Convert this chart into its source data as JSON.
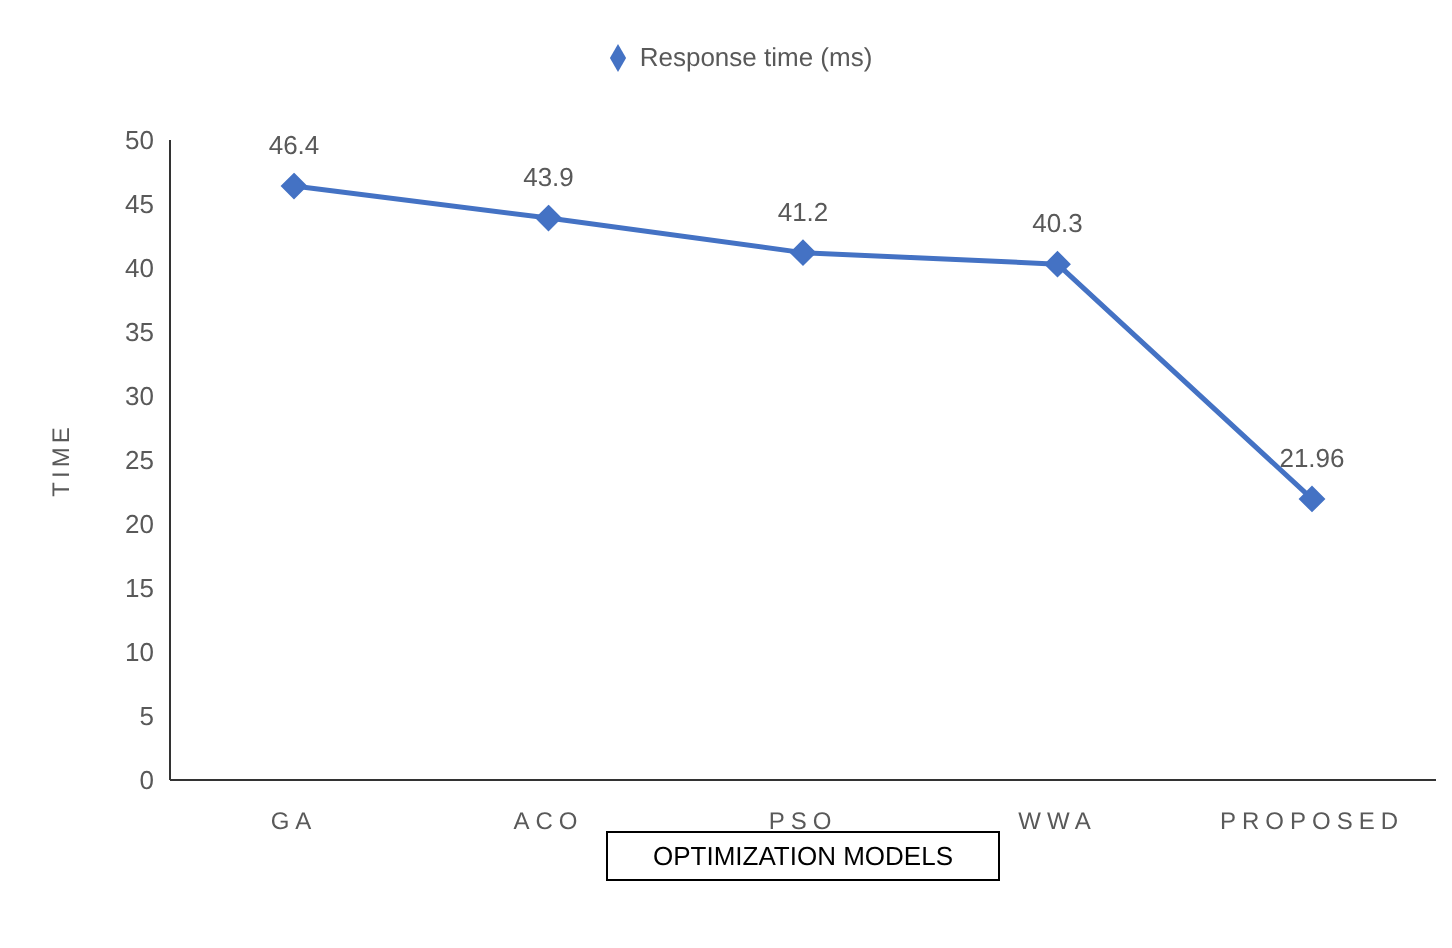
{
  "chart_data": {
    "type": "line",
    "xlabel": "OPTIMIZATION MODELS",
    "ylabel": "TIME",
    "categories": [
      "GA",
      "ACO",
      "PSO",
      "WWA",
      "PROPOSED"
    ],
    "series": [
      {
        "name": "Response time (ms)",
        "color": "#4472c4",
        "values": [
          46.4,
          43.9,
          41.2,
          40.3,
          21.96
        ]
      }
    ],
    "ylim": [
      0,
      50
    ],
    "yticks": [
      0,
      5,
      10,
      15,
      20,
      25,
      30,
      35,
      40,
      45,
      50
    ],
    "grid": false,
    "legend": "top",
    "marker": "diamond",
    "line_style": "solid",
    "data_labels": true
  }
}
